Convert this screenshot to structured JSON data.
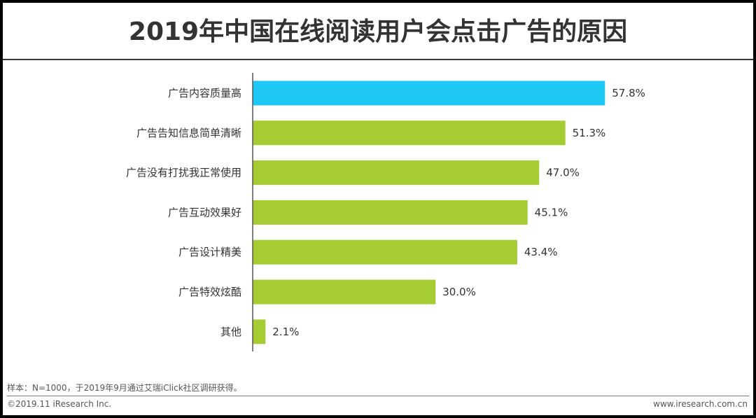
{
  "title": "2019年中国在线阅读用户会点击广告的原因",
  "chart_data": {
    "type": "bar",
    "orientation": "horizontal",
    "categories": [
      "广告内容质量高",
      "广告告知信息简单清晰",
      "广告没有打扰我正常使用",
      "广告互动效果好",
      "广告设计精美",
      "广告特效炫酷",
      "其他"
    ],
    "values": [
      57.8,
      51.3,
      47.0,
      45.1,
      43.4,
      30.0,
      2.1
    ],
    "value_labels": [
      "57.8%",
      "51.3%",
      "47.0%",
      "45.1%",
      "43.4%",
      "30.0%",
      "2.1%"
    ],
    "xlim": [
      0,
      58
    ],
    "grid": false,
    "legend": "none",
    "highlight_index": 0,
    "colors": {
      "highlight": "#1ec8f5",
      "default": "#a6cc33",
      "axis": "#555555"
    }
  },
  "footer": {
    "note": "样本：N=1000，于2019年9月通过艾瑞iClick社区调研获得。",
    "copyright": "©2019.11 iResearch Inc.",
    "website": "www.iresearch.com.cn"
  }
}
